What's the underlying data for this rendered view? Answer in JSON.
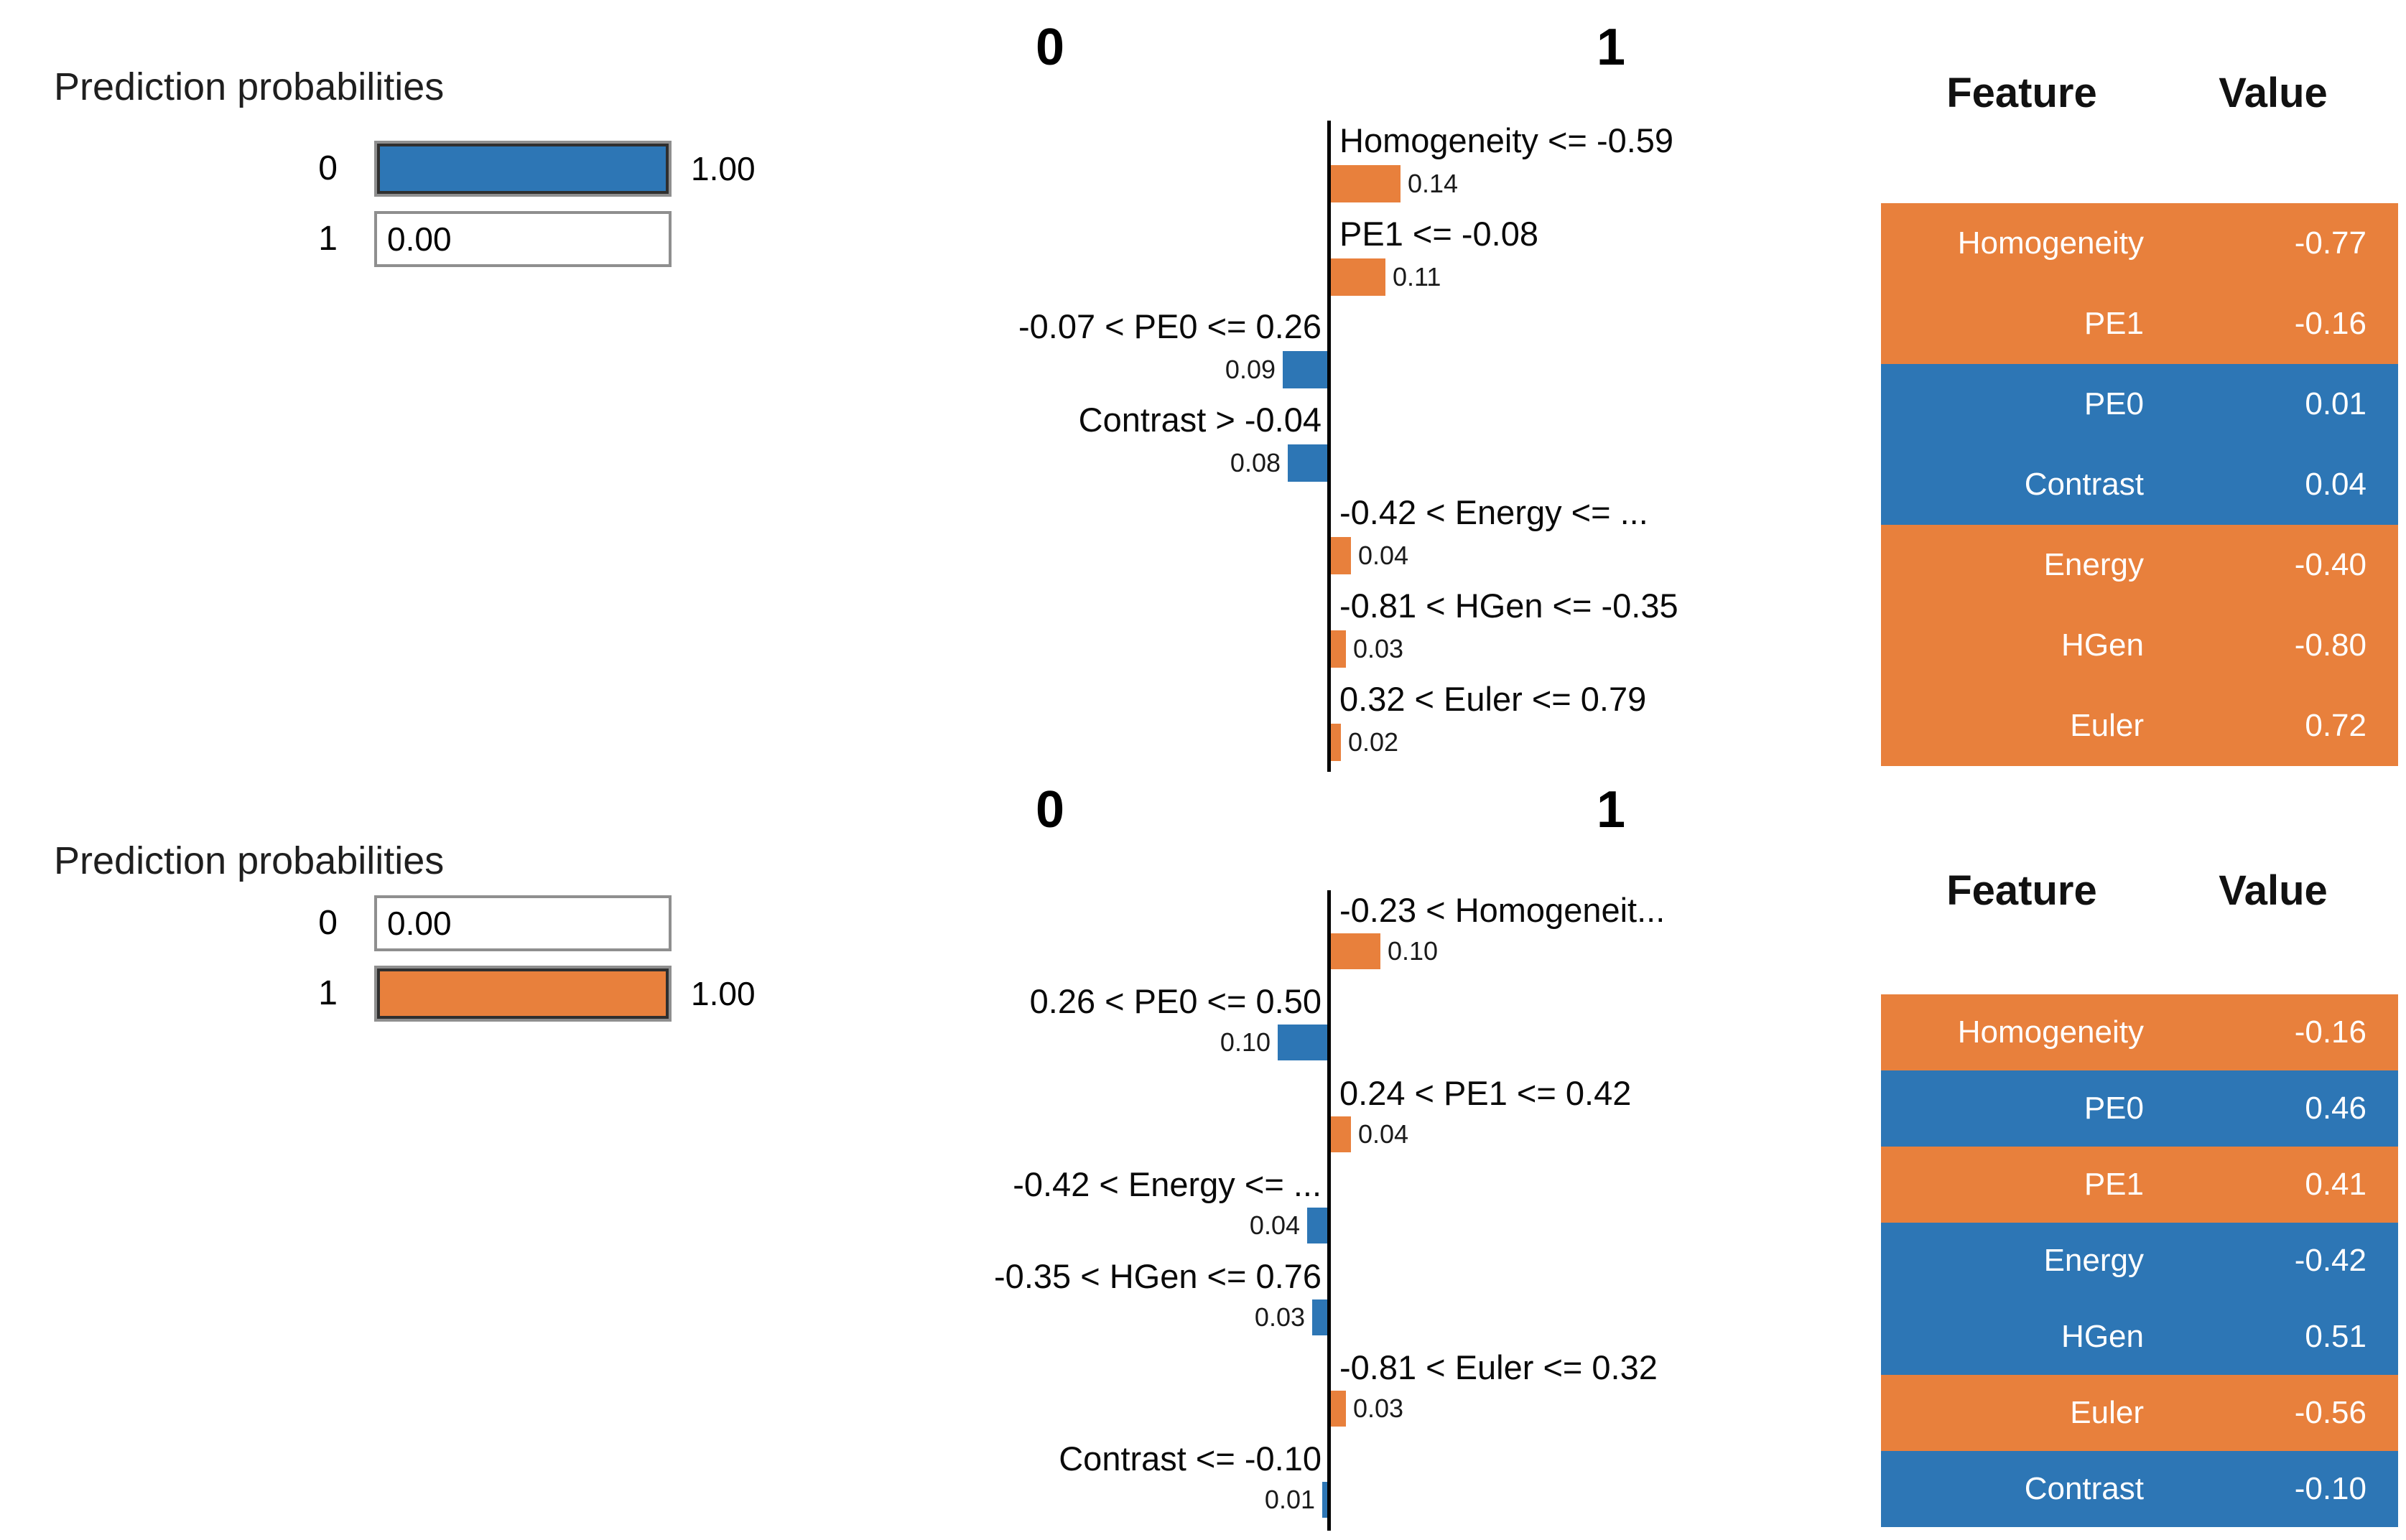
{
  "colors": {
    "blue": "#2d76b5",
    "orange": "#e8803c",
    "axis": "#000000",
    "fill_border": "#2f2f2f",
    "track_border": "#8f8f8f"
  },
  "panels": [
    {
      "prediction": {
        "title": "Prediction probabilities",
        "rows": [
          {
            "label": "0",
            "value": 1.0,
            "value_text": "1.00",
            "color": "blue",
            "value_position": "right"
          },
          {
            "label": "1",
            "value": 0.0,
            "value_text": "0.00",
            "color": "none",
            "value_position": "inside"
          }
        ]
      },
      "chart": {
        "class0_header": "0",
        "class1_header": "1",
        "rows": [
          {
            "label": "Homogeneity <= -0.59",
            "side": "right",
            "value": 0.14,
            "value_text": "0.14"
          },
          {
            "label": "PE1 <= -0.08",
            "side": "right",
            "value": 0.11,
            "value_text": "0.11"
          },
          {
            "label": "-0.07 < PE0 <= 0.26",
            "side": "left",
            "value": 0.09,
            "value_text": "0.09"
          },
          {
            "label": "Contrast > -0.04",
            "side": "left",
            "value": 0.08,
            "value_text": "0.08"
          },
          {
            "label": "-0.42 < Energy <= ...",
            "side": "right",
            "value": 0.04,
            "value_text": "0.04"
          },
          {
            "label": "-0.81 < HGen <= -0.35",
            "side": "right",
            "value": 0.03,
            "value_text": "0.03"
          },
          {
            "label": "0.32 < Euler <= 0.79",
            "side": "right",
            "value": 0.02,
            "value_text": "0.02"
          }
        ]
      },
      "table": {
        "feature_header": "Feature",
        "value_header": "Value",
        "rows": [
          {
            "feature": "Homogeneity",
            "value": "-0.77",
            "color": "orange"
          },
          {
            "feature": "PE1",
            "value": "-0.16",
            "color": "orange"
          },
          {
            "feature": "PE0",
            "value": "0.01",
            "color": "blue"
          },
          {
            "feature": "Contrast",
            "value": "0.04",
            "color": "blue"
          },
          {
            "feature": "Energy",
            "value": "-0.40",
            "color": "orange"
          },
          {
            "feature": "HGen",
            "value": "-0.80",
            "color": "orange"
          },
          {
            "feature": "Euler",
            "value": "0.72",
            "color": "orange"
          }
        ]
      }
    },
    {
      "prediction": {
        "title": "Prediction probabilities",
        "rows": [
          {
            "label": "0",
            "value": 0.0,
            "value_text": "0.00",
            "color": "none",
            "value_position": "inside"
          },
          {
            "label": "1",
            "value": 1.0,
            "value_text": "1.00",
            "color": "orange",
            "value_position": "right"
          }
        ]
      },
      "chart": {
        "class0_header": "0",
        "class1_header": "1",
        "rows": [
          {
            "label": "-0.23 < Homogeneit...",
            "side": "right",
            "value": 0.1,
            "value_text": "0.10"
          },
          {
            "label": "0.26 < PE0 <= 0.50",
            "side": "left",
            "value": 0.1,
            "value_text": "0.10"
          },
          {
            "label": "0.24 < PE1 <= 0.42",
            "side": "right",
            "value": 0.04,
            "value_text": "0.04"
          },
          {
            "label": "-0.42 < Energy <= ...",
            "side": "left",
            "value": 0.04,
            "value_text": "0.04"
          },
          {
            "label": "-0.35 < HGen <= 0.76",
            "side": "left",
            "value": 0.03,
            "value_text": "0.03"
          },
          {
            "label": "-0.81 < Euler <= 0.32",
            "side": "right",
            "value": 0.03,
            "value_text": "0.03"
          },
          {
            "label": "Contrast <= -0.10",
            "side": "left",
            "value": 0.01,
            "value_text": "0.01"
          }
        ]
      },
      "table": {
        "feature_header": "Feature",
        "value_header": "Value",
        "rows": [
          {
            "feature": "Homogeneity",
            "value": "-0.16",
            "color": "orange"
          },
          {
            "feature": "PE0",
            "value": "0.46",
            "color": "blue"
          },
          {
            "feature": "PE1",
            "value": "0.41",
            "color": "orange"
          },
          {
            "feature": "Energy",
            "value": "-0.42",
            "color": "blue"
          },
          {
            "feature": "HGen",
            "value": "0.51",
            "color": "blue"
          },
          {
            "feature": "Euler",
            "value": "-0.56",
            "color": "orange"
          },
          {
            "feature": "Contrast",
            "value": "-0.10",
            "color": "blue"
          }
        ]
      }
    }
  ],
  "chart_data": [
    {
      "type": "bar",
      "orientation": "horizontal",
      "legend": [
        "0",
        "1"
      ],
      "prediction_probabilities": {
        "0": 1.0,
        "1": 0.0
      },
      "categories": [
        "Homogeneity <= -0.59",
        "PE1 <= -0.08",
        "-0.07 < PE0 <= 0.26",
        "Contrast > -0.04",
        "-0.42 < Energy <= ...",
        "-0.81 < HGen <= -0.35",
        "0.32 < Euler <= 0.79"
      ],
      "values": [
        0.14,
        0.11,
        0.09,
        0.08,
        0.04,
        0.03,
        0.02
      ],
      "bar_class": [
        "1",
        "1",
        "0",
        "0",
        "1",
        "1",
        "1"
      ],
      "feature_values": {
        "Homogeneity": -0.77,
        "PE1": -0.16,
        "PE0": 0.01,
        "Contrast": 0.04,
        "Energy": -0.4,
        "HGen": -0.8,
        "Euler": 0.72
      }
    },
    {
      "type": "bar",
      "orientation": "horizontal",
      "legend": [
        "0",
        "1"
      ],
      "prediction_probabilities": {
        "0": 0.0,
        "1": 1.0
      },
      "categories": [
        "-0.23 < Homogeneit...",
        "0.26 < PE0 <= 0.50",
        "0.24 < PE1 <= 0.42",
        "-0.42 < Energy <= ...",
        "-0.35 < HGen <= 0.76",
        "-0.81 < Euler <= 0.32",
        "Contrast <= -0.10"
      ],
      "values": [
        0.1,
        0.1,
        0.04,
        0.04,
        0.03,
        0.03,
        0.01
      ],
      "bar_class": [
        "1",
        "0",
        "1",
        "0",
        "0",
        "1",
        "0"
      ],
      "feature_values": {
        "Homogeneity": -0.16,
        "PE0": 0.46,
        "PE1": 0.41,
        "Energy": -0.42,
        "HGen": 0.51,
        "Euler": -0.56,
        "Contrast": -0.1
      }
    }
  ]
}
